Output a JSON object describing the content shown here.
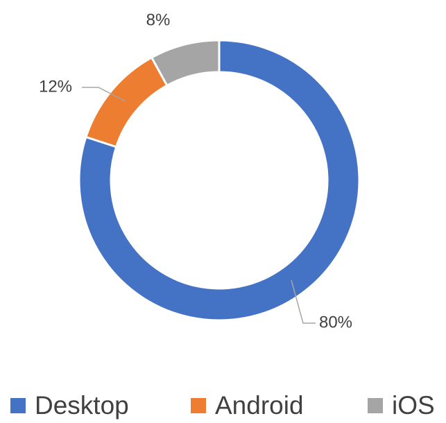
{
  "chart_data": {
    "type": "donut",
    "categories": [
      "Desktop",
      "Android",
      "iOS"
    ],
    "values": [
      80,
      12,
      8
    ],
    "value_labels": [
      "80%",
      "12%",
      "8%"
    ],
    "colors": [
      "#4472c4",
      "#ed7d31",
      "#a5a5a5"
    ],
    "legend": "bottom"
  }
}
